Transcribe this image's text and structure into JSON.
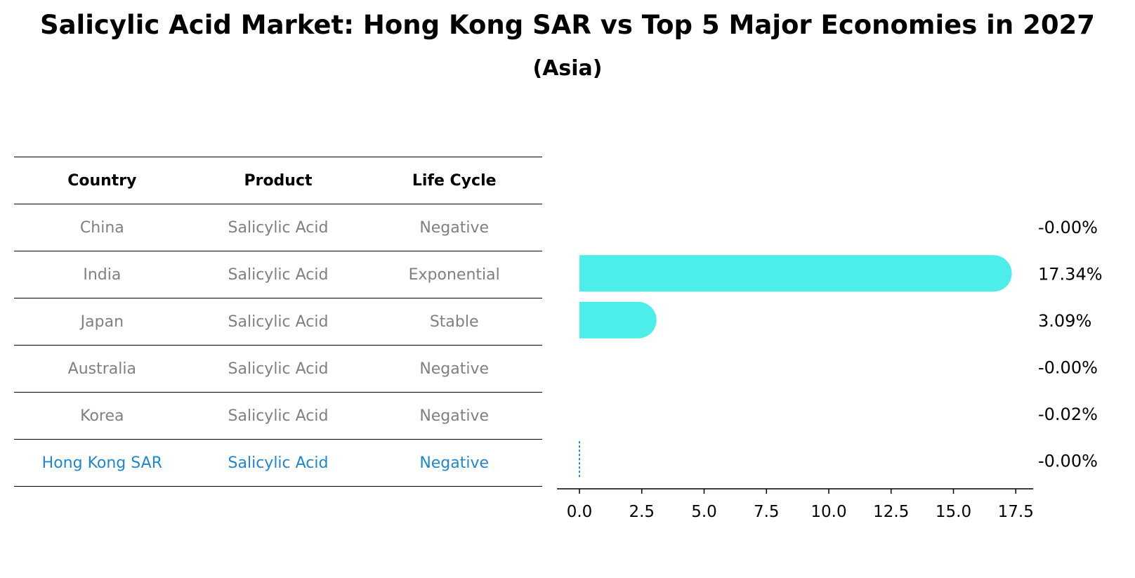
{
  "title": "Salicylic Acid Market: Hong Kong SAR vs Top 5 Major Economies in 2027",
  "subtitle": "(Asia)",
  "table": {
    "headers": [
      "Country",
      "Product",
      "Life Cycle"
    ],
    "rows": [
      {
        "country": "China",
        "product": "Salicylic Acid",
        "life_cycle": "Negative"
      },
      {
        "country": "India",
        "product": "Salicylic Acid",
        "life_cycle": "Exponential"
      },
      {
        "country": "Japan",
        "product": "Salicylic Acid",
        "life_cycle": "Stable"
      },
      {
        "country": "Australia",
        "product": "Salicylic Acid",
        "life_cycle": "Negative"
      },
      {
        "country": "Korea",
        "product": "Salicylic Acid",
        "life_cycle": "Negative"
      },
      {
        "country": "Hong Kong SAR",
        "product": "Salicylic Acid",
        "life_cycle": "Negative"
      }
    ],
    "highlight_row": "Hong Kong SAR"
  },
  "colors": {
    "bar": "#4deeea",
    "highlight": "#1f86d0",
    "muted_text": "#808080"
  },
  "chart_data": {
    "type": "bar",
    "orientation": "horizontal",
    "categories": [
      "China",
      "India",
      "Japan",
      "Australia",
      "Korea",
      "Hong Kong SAR"
    ],
    "values": [
      0.0,
      17.34,
      3.09,
      0.0,
      -0.02,
      0.0
    ],
    "value_labels": [
      "-0.00%",
      "17.34%",
      "3.09%",
      "-0.00%",
      "-0.02%",
      "-0.00%"
    ],
    "xlim": [
      -0.9,
      18.2
    ],
    "x_ticks": [
      0,
      2.5,
      5,
      7.5,
      10,
      12.5,
      15,
      17.5
    ],
    "x_tick_labels": [
      "0.0",
      "2.5",
      "5.0",
      "7.5",
      "10.0",
      "12.5",
      "15.0",
      "17.5"
    ],
    "grid": false
  }
}
